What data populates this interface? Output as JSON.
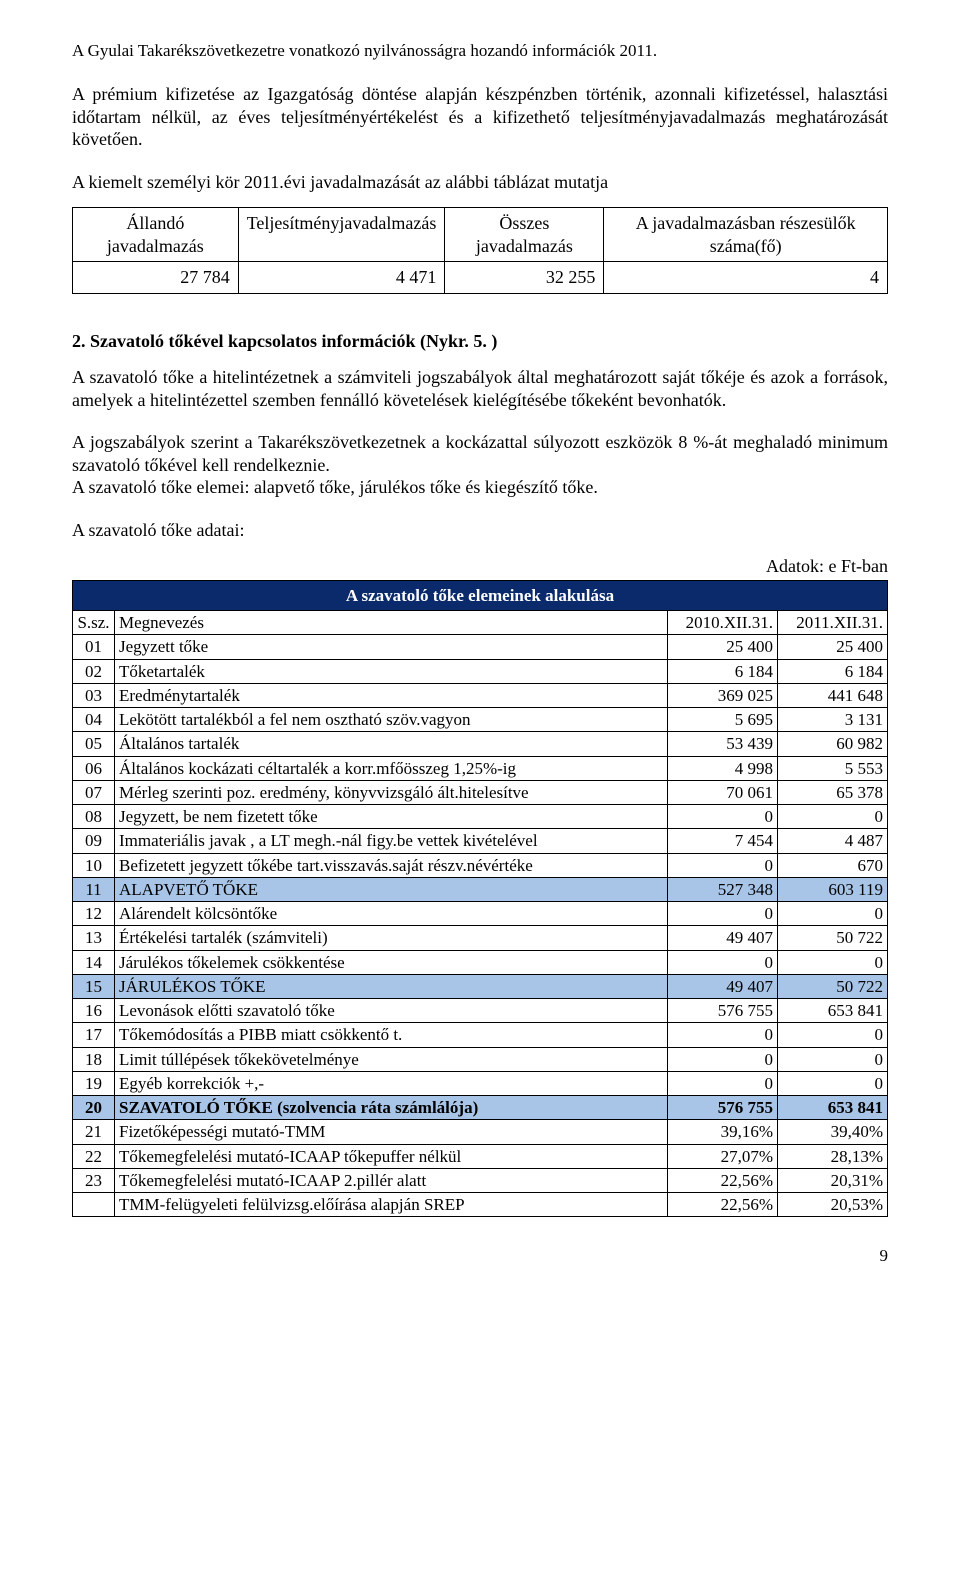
{
  "header": "A Gyulai Takarékszövetkezetre vonatkozó nyilvánosságra hozandó információk 2011.",
  "p1": "A prémium kifizetése az Igazgatóság döntése alapján készpénzben történik, azonnali kifizetéssel, halasztási időtartam nélkül, az éves teljesítményértékelést és a kifizethető teljesítményjavadalmazás meghatározását követően.",
  "p2": "A kiemelt személyi kör 2011.évi javadalmazását az alábbi táblázat mutatja",
  "table1": {
    "headers": [
      "Állandó javadalmazás",
      "Teljesítményjavadalmazás",
      "Összes javadalmazás",
      "A javadalmazásban részesülők száma(fő)"
    ],
    "row": [
      "27 784",
      "4 471",
      "32 255",
      "4"
    ]
  },
  "section2_title": "2. Szavatoló tőkével kapcsolatos információk (Nykr. 5. )",
  "p3": "A szavatoló tőke a hitelintézetnek a számviteli jogszabályok által meghatározott saját tőkéje és azok a források, amelyek a hitelintézettel szemben fennálló követelések kielégítésébe tőkeként bevonhatók.",
  "p4a": "A jogszabályok szerint a Takarékszövetkezetnek  a kockázattal súlyozott eszközök 8 %-át meghaladó minimum szavatoló tőkével kell rendelkeznie.",
  "p4b": "A szavatoló tőke elemei: alapvető tőke, járulékos tőke és kiegészítő tőke.",
  "p5": "A szavatoló tőke adatai:",
  "adatok": "Adatok: e Ft-ban",
  "table2": {
    "title": "A szavatoló tőke elemeinek alakulása",
    "cols": [
      "S.sz.",
      "Megnevezés",
      "2010.XII.31.",
      "2011.XII.31."
    ],
    "rows": [
      {
        "s": "01",
        "m": "Jegyzett tőke",
        "a": "25 400",
        "b": "25 400",
        "hl": false,
        "bold": false
      },
      {
        "s": "02",
        "m": "Tőketartalék",
        "a": "6 184",
        "b": "6 184",
        "hl": false,
        "bold": false
      },
      {
        "s": "03",
        "m": "Eredménytartalék",
        "a": "369 025",
        "b": "441 648",
        "hl": false,
        "bold": false
      },
      {
        "s": "04",
        "m": "Lekötött tartalékból a fel nem osztható szöv.vagyon",
        "a": "5 695",
        "b": "3 131",
        "hl": false,
        "bold": false
      },
      {
        "s": "05",
        "m": "Általános tartalék",
        "a": "53 439",
        "b": "60 982",
        "hl": false,
        "bold": false
      },
      {
        "s": "06",
        "m": "Általános kockázati céltartalék a korr.mfőösszeg 1,25%-ig",
        "a": "4 998",
        "b": "5 553",
        "hl": false,
        "bold": false
      },
      {
        "s": "07",
        "m": "Mérleg szerinti  poz. eredmény, könyvvizsgáló ált.hitelesítve",
        "a": "70 061",
        "b": "65 378",
        "hl": false,
        "bold": false
      },
      {
        "s": "08",
        "m": "Jegyzett, be nem fizetett tőke",
        "a": "0",
        "b": "0",
        "hl": false,
        "bold": false
      },
      {
        "s": "09",
        "m": "Immateriális javak , a LT megh.-nál figy.be vettek kivételével",
        "a": "7 454",
        "b": "4 487",
        "hl": false,
        "bold": false
      },
      {
        "s": "10",
        "m": "Befizetett jegyzett tőkébe tart.visszavás.saját részv.névértéke",
        "a": "0",
        "b": "670",
        "hl": false,
        "bold": false
      },
      {
        "s": "11",
        "m": "ALAPVETŐ TŐKE",
        "a": "527 348",
        "b": "603 119",
        "hl": true,
        "bold": false
      },
      {
        "s": "12",
        "m": "Alárendelt kölcsöntőke",
        "a": "0",
        "b": "0",
        "hl": false,
        "bold": false
      },
      {
        "s": "13",
        "m": "Értékelési tartalék  (számviteli)",
        "a": "49 407",
        "b": "50 722",
        "hl": false,
        "bold": false
      },
      {
        "s": "14",
        "m": "Járulékos tőkelemek csökkentése",
        "a": "0",
        "b": "0",
        "hl": false,
        "bold": false
      },
      {
        "s": "15",
        "m": "JÁRULÉKOS TŐKE",
        "a": "49 407",
        "b": "50 722",
        "hl": true,
        "bold": false
      },
      {
        "s": "16",
        "m": "Levonások előtti szavatoló tőke",
        "a": "576 755",
        "b": "653 841",
        "hl": false,
        "bold": false
      },
      {
        "s": "17",
        "m": "Tőkemódosítás a PIBB miatt csökkentő t.",
        "a": "0",
        "b": "0",
        "hl": false,
        "bold": false
      },
      {
        "s": "18",
        "m": "Limit túllépések tőkekövetelménye",
        "a": "0",
        "b": "0",
        "hl": false,
        "bold": false
      },
      {
        "s": "19",
        "m": "Egyéb korrekciók +,-",
        "a": "0",
        "b": "0",
        "hl": false,
        "bold": false
      },
      {
        "s": "20",
        "m": "SZAVATOLÓ TŐKE (szolvencia ráta számlálója)",
        "a": "576 755",
        "b": "653 841",
        "hl": true,
        "bold": true
      },
      {
        "s": "21",
        "m": "Fizetőképességi mutató-TMM",
        "a": "39,16%",
        "b": "39,40%",
        "hl": false,
        "bold": false
      },
      {
        "s": "22",
        "m": "Tőkemegfelelési mutató-ICAAP tőkepuffer nélkül",
        "a": "27,07%",
        "b": "28,13%",
        "hl": false,
        "bold": false
      },
      {
        "s": "23",
        "m": "Tőkemegfelelési mutató-ICAAP  2.pillér alatt",
        "a": "22,56%",
        "b": "20,31%",
        "hl": false,
        "bold": false
      },
      {
        "s": "",
        "m": "TMM-felügyeleti felülvizsg.előírása alapján SREP",
        "a": "22,56%",
        "b": "20,53%",
        "hl": false,
        "bold": false
      }
    ]
  },
  "pagenum": "9"
}
